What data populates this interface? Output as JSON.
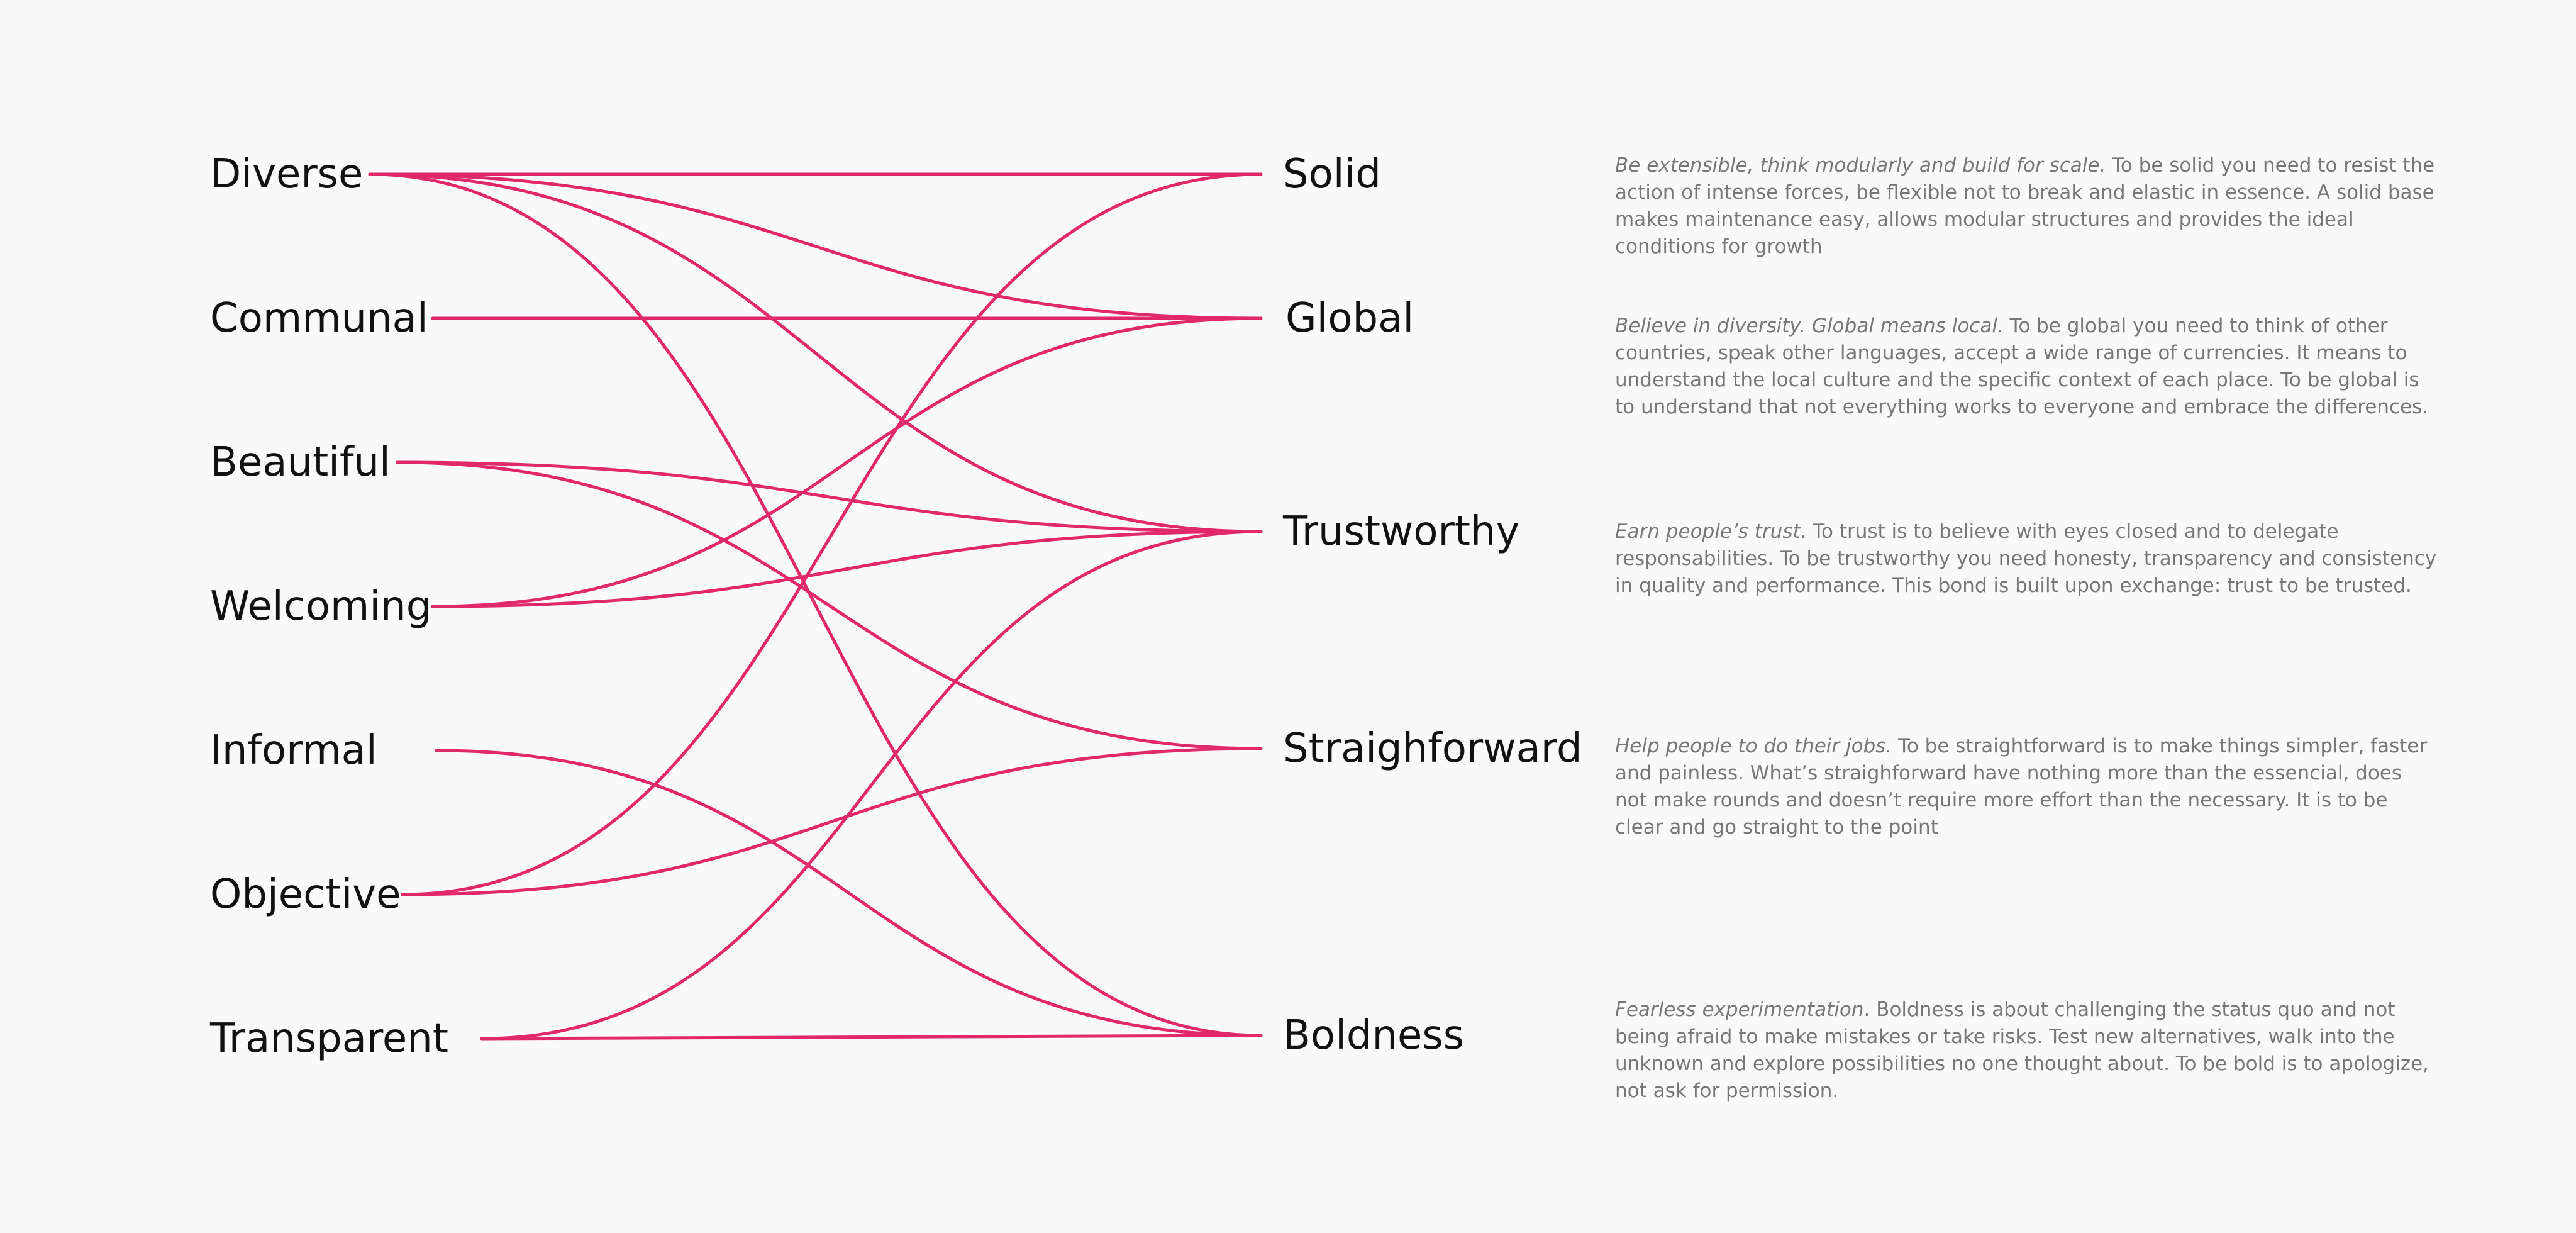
{
  "colors": {
    "link": "#e0286b",
    "background": "#f9f9f9",
    "word": "#111111",
    "description": "#777777"
  },
  "left_nodes": [
    {
      "id": "diverse",
      "label": "Diverse"
    },
    {
      "id": "communal",
      "label": "Communal"
    },
    {
      "id": "beautiful",
      "label": "Beautiful"
    },
    {
      "id": "welcoming",
      "label": "Welcoming"
    },
    {
      "id": "informal",
      "label": "Informal"
    },
    {
      "id": "objective",
      "label": "Objective"
    },
    {
      "id": "transparent",
      "label": "Transparent"
    }
  ],
  "right_nodes": [
    {
      "id": "solid",
      "label": "Solid",
      "tagline": "Be extensible, think modularly and build for scale.",
      "description": " To be solid you need to resist the action of intense forces, be flexible not to break and elastic in essence. A solid base makes maintenance easy, allows modular structures and provides the ideal conditions for growth"
    },
    {
      "id": "global",
      "label": "Global",
      "tagline": "Believe in diversity. Global means local.",
      "description": " To be global you need to think of other countries, speak other languages, accept a wide range of currencies. It means to understand the local culture and the specific context of each place. To be global is to understand that not everything works to everyone and embrace the differences."
    },
    {
      "id": "trustworthy",
      "label": "Trustworthy",
      "tagline": "Earn people’s trust",
      "description": ". To trust is to believe with eyes closed and to delegate responsabilities. To be trustworthy you need honesty, transparency and consistency in quality and performance. This bond is built upon exchange: trust to be trusted."
    },
    {
      "id": "straighforward",
      "label": "Straighforward",
      "tagline": "Help people to do their jobs.",
      "description": " To be straightforward is to make things simpler, faster and painless. What’s straighforward have nothing more than the essencial, does not make rounds and doesn’t require more effort than the necessary. It is to be clear and go straight to the point"
    },
    {
      "id": "boldness",
      "label": "Boldness",
      "tagline": "Fearless experimentation",
      "description": ". Boldness is about challenging the status quo and not being afraid to make mistakes or take risks. Test new alternatives, walk into the unknown and explore possibilities no one thought about. To be bold is to apologize, not ask for permission."
    }
  ],
  "links": [
    {
      "from": "diverse",
      "to": "solid"
    },
    {
      "from": "diverse",
      "to": "global"
    },
    {
      "from": "diverse",
      "to": "trustworthy"
    },
    {
      "from": "diverse",
      "to": "boldness"
    },
    {
      "from": "communal",
      "to": "global"
    },
    {
      "from": "beautiful",
      "to": "trustworthy"
    },
    {
      "from": "beautiful",
      "to": "straighforward"
    },
    {
      "from": "welcoming",
      "to": "global"
    },
    {
      "from": "welcoming",
      "to": "trustworthy"
    },
    {
      "from": "informal",
      "to": "boldness"
    },
    {
      "from": "objective",
      "to": "solid"
    },
    {
      "from": "objective",
      "to": "straighforward"
    },
    {
      "from": "transparent",
      "to": "trustworthy"
    },
    {
      "from": "transparent",
      "to": "boldness"
    }
  ]
}
